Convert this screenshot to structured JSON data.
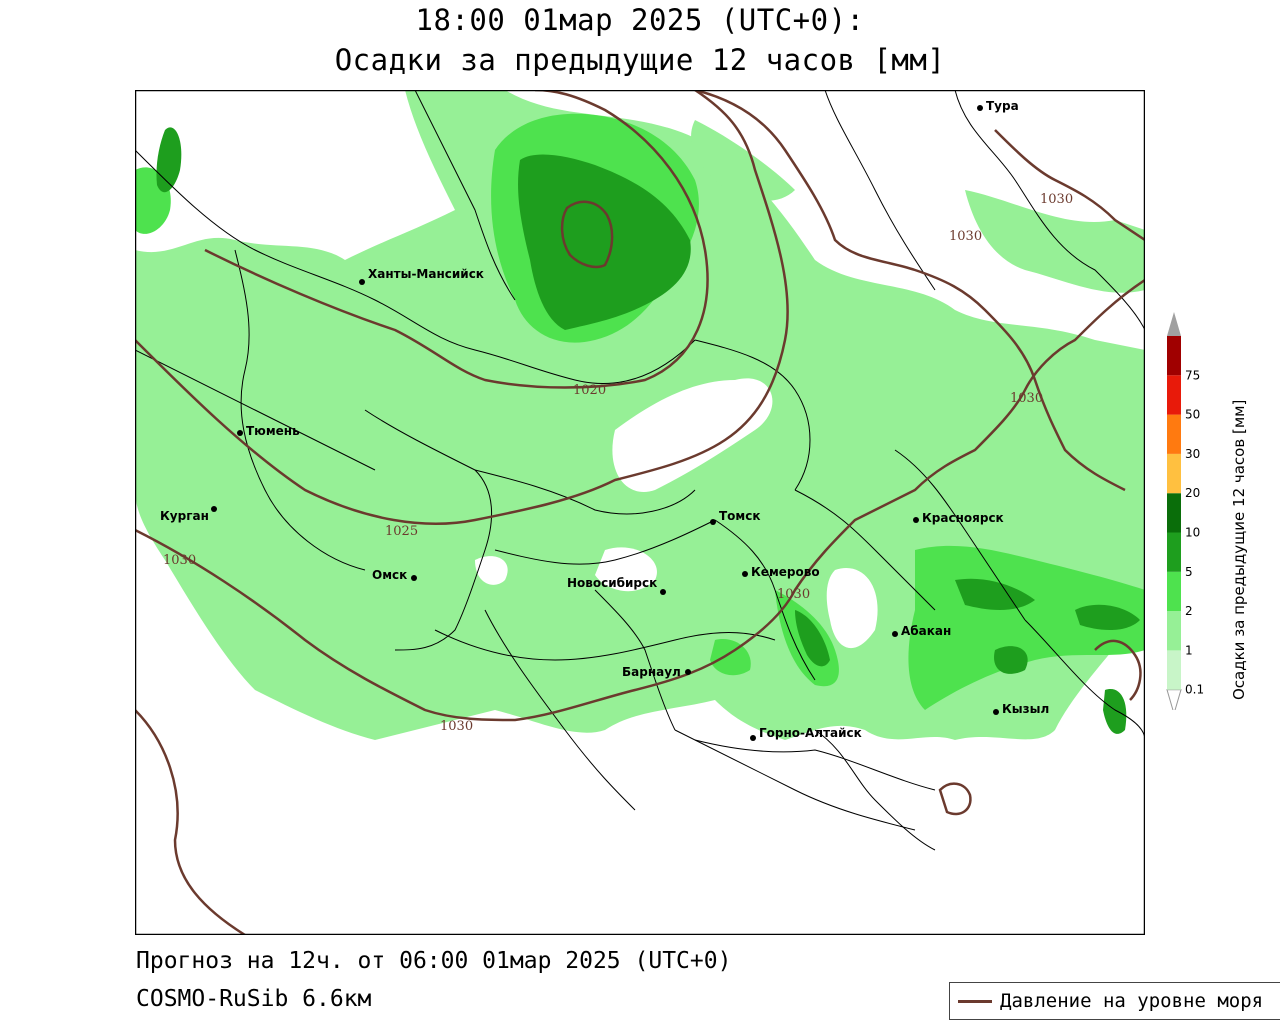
{
  "title": {
    "line1": "18:00 01мар 2025 (UTC+0):",
    "line2": "Осадки за предыдущие 12 часов [мм]"
  },
  "footer": {
    "forecast": "Прогноз на 12ч. от 06:00 01мар 2025 (UTC+0)",
    "model": "COSMO-RuSib 6.6км"
  },
  "legend": {
    "pressure_label": "Давление на уровне моря",
    "pressure_color": "#6b3a2e"
  },
  "colorbar": {
    "title": "Осадки за предыдущие 12 часов [мм]",
    "levels": [
      "0.1",
      "1",
      "2",
      "5",
      "10",
      "20",
      "30",
      "50",
      "75"
    ],
    "colors": [
      "#c8f5c8",
      "#96f096",
      "#4ee24e",
      "#1e9e1e",
      "#0a6e0a",
      "#ffc040",
      "#ff7a10",
      "#e81a0a",
      "#a00000",
      "#a0a0a0"
    ]
  },
  "cities": [
    {
      "name": "Тура"
    },
    {
      "name": "Ханты-Мансийск"
    },
    {
      "name": "Тюмень"
    },
    {
      "name": "Курган"
    },
    {
      "name": "Омск"
    },
    {
      "name": "Новосибирск"
    },
    {
      "name": "Томск"
    },
    {
      "name": "Кемерово"
    },
    {
      "name": "Красноярск"
    },
    {
      "name": "Абакан"
    },
    {
      "name": "Барнаул"
    },
    {
      "name": "Горно-Алтайск"
    },
    {
      "name": "Кызыл"
    }
  ],
  "isobars": [
    "1020",
    "1025",
    "1030",
    "1030",
    "1030",
    "1030",
    "1030",
    "1030"
  ]
}
